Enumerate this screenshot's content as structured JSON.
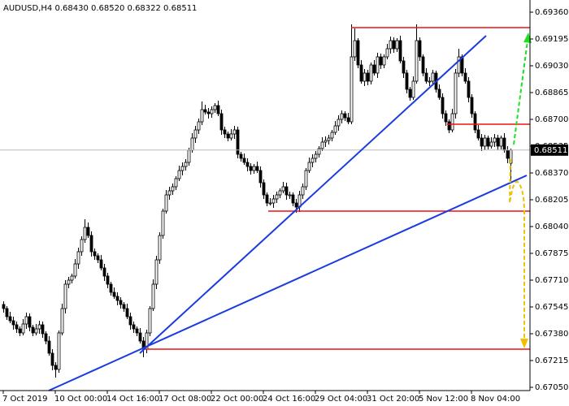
{
  "chart_data": {
    "type": "candlestick",
    "title": "AUDUSD,H4 0.68430 0.68520 0.68322 0.68511",
    "last_price": 0.68511,
    "ylim": [
      0.6703,
      0.69435
    ],
    "yticks": [
      {
        "value": 0.6936,
        "label": "0.69360"
      },
      {
        "value": 0.69195,
        "label": "0.69195"
      },
      {
        "value": 0.6903,
        "label": "0.69030"
      },
      {
        "value": 0.68865,
        "label": "0.68865"
      },
      {
        "value": 0.687,
        "label": "0.68700"
      },
      {
        "value": 0.68535,
        "label": "0.68535"
      },
      {
        "value": 0.6837,
        "label": "0.68370"
      },
      {
        "value": 0.68205,
        "label": "0.68205"
      },
      {
        "value": 0.6804,
        "label": "0.68040"
      },
      {
        "value": 0.67875,
        "label": "0.67875"
      },
      {
        "value": 0.6771,
        "label": "0.67710"
      },
      {
        "value": 0.67545,
        "label": "0.67545"
      },
      {
        "value": 0.6738,
        "label": "0.67380"
      },
      {
        "value": 0.67215,
        "label": "0.67215"
      },
      {
        "value": 0.6705,
        "label": "0.67050"
      }
    ],
    "categories": [
      "7 Oct 2019",
      null,
      null,
      null,
      null,
      null,
      null,
      null,
      null,
      null,
      null,
      null,
      null,
      null,
      null,
      null,
      "10 Oct 00:00",
      null,
      null,
      null,
      null,
      null,
      null,
      null,
      null,
      null,
      null,
      null,
      null,
      null,
      null,
      null,
      "14 Oct 16:00",
      null,
      null,
      null,
      null,
      null,
      null,
      null,
      null,
      null,
      null,
      null,
      null,
      null,
      null,
      null,
      "17 Oct 08:00",
      null,
      null,
      null,
      null,
      null,
      null,
      null,
      null,
      null,
      null,
      null,
      null,
      null,
      null,
      null,
      "22 Oct 00:00",
      null,
      null,
      null,
      null,
      null,
      null,
      null,
      null,
      null,
      null,
      null,
      null,
      null,
      null,
      null,
      "24 Oct 16:00",
      null,
      null,
      null,
      null,
      null,
      null,
      null,
      null,
      null,
      null,
      null,
      null,
      null,
      null,
      null,
      "29 Oct 04:00",
      null,
      null,
      null,
      null,
      null,
      null,
      null,
      null,
      null,
      null,
      null,
      null,
      null,
      null,
      null,
      "31 Oct 20:00",
      null,
      null,
      null,
      null,
      null,
      null,
      null,
      null,
      null,
      null,
      null,
      null,
      null,
      null,
      null,
      "5 Nov 12:00",
      null,
      null,
      null,
      null,
      null,
      null,
      null,
      null,
      null,
      null,
      null,
      null,
      null,
      null,
      null,
      "8 Nov 04:00",
      null,
      null,
      null,
      null,
      null,
      null,
      null,
      null,
      null,
      null,
      null,
      null
    ],
    "open": [
      0.6756,
      0.67535,
      0.67485,
      0.6746,
      0.67435,
      0.6741,
      0.67385,
      0.6744,
      0.67485,
      0.6742,
      0.67385,
      0.6741,
      0.67435,
      0.6738,
      0.67335,
      0.6726,
      0.67185,
      0.6716,
      0.67385,
      0.67535,
      0.67685,
      0.6771,
      0.67735,
      0.6781,
      0.67885,
      0.6796,
      0.68035,
      0.67985,
      0.67885,
      0.6786,
      0.67835,
      0.67785,
      0.67735,
      0.67685,
      0.67635,
      0.6761,
      0.67585,
      0.6756,
      0.67535,
      0.67485,
      0.67435,
      0.6741,
      0.67385,
      0.67335,
      0.67285,
      0.67385,
      0.67535,
      0.67685,
      0.67835,
      0.67985,
      0.68135,
      0.68235,
      0.6826,
      0.68285,
      0.68335,
      0.68385,
      0.6841,
      0.68435,
      0.6851,
      0.68585,
      0.68635,
      0.68685,
      0.6876,
      0.68745,
      0.68735,
      0.6876,
      0.68785,
      0.68735,
      0.68635,
      0.6861,
      0.68585,
      0.6861,
      0.68635,
      0.68485,
      0.6846,
      0.68435,
      0.6841,
      0.68385,
      0.6841,
      0.68385,
      0.6831,
      0.68235,
      0.68185,
      0.68185,
      0.6821,
      0.68235,
      0.6826,
      0.68285,
      0.68235,
      0.68235,
      0.68185,
      0.6816,
      0.68235,
      0.68285,
      0.68385,
      0.68435,
      0.6846,
      0.68485,
      0.6852,
      0.6856,
      0.6857,
      0.68585,
      0.6862,
      0.6866,
      0.687,
      0.68735,
      0.6871,
      0.68685,
      0.69085,
      0.69185,
      0.69035,
      0.68935,
      0.68985,
      0.68935,
      0.69035,
      0.68985,
      0.69085,
      0.69035,
      0.69085,
      0.69135,
      0.69185,
      0.69135,
      0.69185,
      0.6906,
      0.68985,
      0.68885,
      0.68835,
      0.68935,
      0.69185,
      0.69085,
      0.68985,
      0.68935,
      0.68935,
      0.68985,
      0.68885,
      0.68835,
      0.68735,
      0.68685,
      0.68635,
      0.68735,
      0.68985,
      0.69085,
      0.68985,
      0.68935,
      0.68835,
      0.68735,
      0.68635,
      0.68585,
      0.68535,
      0.68585,
      0.68535,
      0.6856,
      0.68585,
      0.68535,
      0.68585,
      0.6851,
      0.6843
    ],
    "high": [
      0.6758,
      0.6755,
      0.67515,
      0.67485,
      0.67455,
      0.67425,
      0.6747,
      0.6751,
      0.67505,
      0.67435,
      0.6744,
      0.6746,
      0.67455,
      0.67395,
      0.67365,
      0.67285,
      0.67205,
      0.674,
      0.67565,
      0.6771,
      0.6773,
      0.6775,
      0.6784,
      0.6791,
      0.6798,
      0.68085,
      0.68065,
      0.6801,
      0.67905,
      0.67875,
      0.67865,
      0.6781,
      0.67755,
      0.677,
      0.67665,
      0.67635,
      0.67605,
      0.67575,
      0.67565,
      0.6751,
      0.67455,
      0.67425,
      0.67415,
      0.6736,
      0.67405,
      0.6755,
      0.67715,
      0.6786,
      0.68005,
      0.6815,
      0.68265,
      0.68285,
      0.68305,
      0.6835,
      0.68415,
      0.68435,
      0.68455,
      0.68525,
      0.68615,
      0.6866,
      0.68705,
      0.6881,
      0.6879,
      0.6877,
      0.6878,
      0.688,
      0.68815,
      0.6876,
      0.68655,
      0.68625,
      0.6864,
      0.6866,
      0.68655,
      0.685,
      0.6849,
      0.6846,
      0.6843,
      0.68425,
      0.6844,
      0.6841,
      0.6833,
      0.6825,
      0.68215,
      0.68235,
      0.68255,
      0.68275,
      0.68315,
      0.6831,
      0.68255,
      0.6825,
      0.6821,
      0.6826,
      0.68305,
      0.684,
      0.68465,
      0.68485,
      0.68505,
      0.68535,
      0.6859,
      0.68595,
      0.68605,
      0.68635,
      0.6869,
      0.68725,
      0.68755,
      0.6875,
      0.6874,
      0.69285,
      0.6926,
      0.692,
      0.69065,
      0.6901,
      0.69005,
      0.6905,
      0.69065,
      0.6911,
      0.69105,
      0.691,
      0.69165,
      0.6921,
      0.69205,
      0.692,
      0.69215,
      0.69085,
      0.69005,
      0.689,
      0.68965,
      0.69285,
      0.69205,
      0.691,
      0.69015,
      0.6896,
      0.69005,
      0.69,
      0.68915,
      0.6886,
      0.68755,
      0.687,
      0.68765,
      0.6901,
      0.69135,
      0.691,
      0.69015,
      0.6896,
      0.68855,
      0.6875,
      0.68665,
      0.6861,
      0.68605,
      0.686,
      0.6859,
      0.6861,
      0.68605,
      0.686,
      0.68615,
      0.68535,
      0.6852
    ],
    "low": [
      0.6751,
      0.67465,
      0.67445,
      0.67405,
      0.67385,
      0.67365,
      0.6737,
      0.6741,
      0.67395,
      0.67365,
      0.6737,
      0.6738,
      0.67355,
      0.67315,
      0.67245,
      0.67155,
      0.6711,
      0.6714,
      0.6737,
      0.67505,
      0.6766,
      0.6769,
      0.6772,
      0.6778,
      0.6786,
      0.6794,
      0.6797,
      0.67855,
      0.67835,
      0.67815,
      0.6777,
      0.67705,
      0.6766,
      0.67615,
      0.67595,
      0.67555,
      0.67535,
      0.67515,
      0.6747,
      0.67405,
      0.67385,
      0.67365,
      0.6732,
      0.67235,
      0.6726,
      0.67365,
      0.6752,
      0.67655,
      0.6781,
      0.67965,
      0.6812,
      0.68205,
      0.68235,
      0.68265,
      0.6832,
      0.68355,
      0.68385,
      0.68415,
      0.68495,
      0.68555,
      0.6861,
      0.68665,
      0.6873,
      0.68705,
      0.6871,
      0.6874,
      0.6872,
      0.68605,
      0.68585,
      0.68565,
      0.6857,
      0.6858,
      0.6846,
      0.6844,
      0.6842,
      0.6838,
      0.6836,
      0.68365,
      0.6837,
      0.6828,
      0.6821,
      0.68165,
      0.6817,
      0.68155,
      0.68185,
      0.68215,
      0.68245,
      0.68205,
      0.6821,
      0.68165,
      0.68125,
      0.6813,
      0.6821,
      0.68265,
      0.6837,
      0.68405,
      0.68435,
      0.68465,
      0.68505,
      0.6853,
      0.68545,
      0.68565,
      0.68605,
      0.6863,
      0.68675,
      0.6869,
      0.6867,
      0.6867,
      0.6906,
      0.69015,
      0.6892,
      0.68905,
      0.6891,
      0.68915,
      0.6897,
      0.68955,
      0.6901,
      0.69015,
      0.6907,
      0.69105,
      0.6911,
      0.69115,
      0.69045,
      0.68955,
      0.6886,
      0.68815,
      0.6882,
      0.6892,
      0.6906,
      0.68965,
      0.6892,
      0.68905,
      0.6891,
      0.68865,
      0.6882,
      0.68705,
      0.6866,
      0.68615,
      0.6862,
      0.68705,
      0.6896,
      0.68965,
      0.6892,
      0.68805,
      0.6871,
      0.68615,
      0.6857,
      0.68505,
      0.6851,
      0.68515,
      0.6852,
      0.6853,
      0.6851,
      0.68515,
      0.68495,
      0.6843,
      0.68322
    ],
    "close": [
      0.67535,
      0.67485,
      0.6746,
      0.67435,
      0.6741,
      0.67385,
      0.6744,
      0.67485,
      0.6742,
      0.67385,
      0.6741,
      0.67435,
      0.6738,
      0.67335,
      0.6726,
      0.67185,
      0.6716,
      0.67385,
      0.67535,
      0.67685,
      0.6771,
      0.67735,
      0.6781,
      0.67885,
      0.6796,
      0.68035,
      0.67985,
      0.67885,
      0.6786,
      0.67835,
      0.67785,
      0.67735,
      0.67685,
      0.67635,
      0.6761,
      0.67585,
      0.6756,
      0.67535,
      0.67485,
      0.67435,
      0.6741,
      0.67385,
      0.67335,
      0.67285,
      0.67385,
      0.67535,
      0.67685,
      0.67835,
      0.67985,
      0.68135,
      0.68235,
      0.6826,
      0.68285,
      0.68335,
      0.68385,
      0.6841,
      0.68435,
      0.6851,
      0.68585,
      0.68635,
      0.68685,
      0.6876,
      0.68745,
      0.68735,
      0.6876,
      0.68785,
      0.68735,
      0.68635,
      0.6861,
      0.68585,
      0.6861,
      0.68635,
      0.68485,
      0.6846,
      0.68435,
      0.6841,
      0.68385,
      0.6841,
      0.68385,
      0.6831,
      0.68235,
      0.68185,
      0.68185,
      0.6821,
      0.68235,
      0.6826,
      0.68285,
      0.68235,
      0.68235,
      0.68185,
      0.6816,
      0.68235,
      0.68285,
      0.68385,
      0.68435,
      0.6846,
      0.68485,
      0.6852,
      0.6856,
      0.6857,
      0.68585,
      0.6862,
      0.6866,
      0.687,
      0.68735,
      0.6871,
      0.68685,
      0.69085,
      0.69185,
      0.69035,
      0.68935,
      0.68985,
      0.68935,
      0.69035,
      0.68985,
      0.69085,
      0.69035,
      0.69085,
      0.69135,
      0.69185,
      0.69135,
      0.69185,
      0.6906,
      0.68985,
      0.68885,
      0.68835,
      0.68935,
      0.69185,
      0.69085,
      0.68985,
      0.68935,
      0.68935,
      0.68985,
      0.68885,
      0.68835,
      0.68735,
      0.68685,
      0.68635,
      0.68735,
      0.68985,
      0.69085,
      0.68985,
      0.68935,
      0.68835,
      0.68735,
      0.68635,
      0.68585,
      0.68535,
      0.68585,
      0.68535,
      0.6856,
      0.68585,
      0.68535,
      0.68585,
      0.6851,
      0.6846,
      0.68511
    ]
  }
}
